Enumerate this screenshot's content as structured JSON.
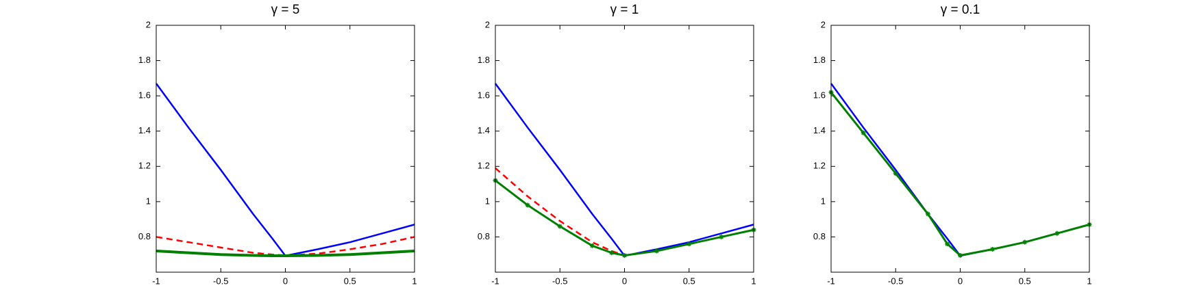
{
  "chart_data": [
    {
      "type": "line",
      "title": "γ = 5",
      "x": [
        -1,
        -0.75,
        -0.5,
        -0.25,
        -0.1,
        0,
        0.25,
        0.5,
        0.75,
        1
      ],
      "series": [
        {
          "color": "#0000ff",
          "linestyle": "solid",
          "linewidth": 2.5,
          "values": [
            1.67,
            1.42,
            1.18,
            0.93,
            0.79,
            0.693,
            0.73,
            0.77,
            0.82,
            0.87
          ]
        },
        {
          "color": "#ff0000",
          "linestyle": "dashed",
          "linewidth": 2.5,
          "values": [
            0.8,
            0.77,
            0.74,
            0.71,
            0.7,
            0.695,
            0.705,
            0.73,
            0.76,
            0.8
          ]
        },
        {
          "color": "#008000",
          "linestyle": "solid",
          "linewidth": 4,
          "values": [
            0.72,
            0.71,
            0.7,
            0.695,
            0.693,
            0.693,
            0.695,
            0.7,
            0.71,
            0.72
          ]
        }
      ],
      "xlim": [
        -1,
        1
      ],
      "xticks": [
        -1,
        -0.5,
        0,
        0.5,
        1
      ],
      "ylim": [
        0.6,
        2
      ],
      "yticks": [
        0.8,
        1,
        1.2,
        1.4,
        1.6,
        1.8,
        2
      ],
      "grid": false
    },
    {
      "type": "line",
      "title": "γ = 1",
      "x": [
        -1,
        -0.75,
        -0.5,
        -0.25,
        -0.1,
        0,
        0.25,
        0.5,
        0.75,
        1
      ],
      "series": [
        {
          "color": "#0000ff",
          "linestyle": "solid",
          "linewidth": 2.5,
          "values": [
            1.67,
            1.42,
            1.18,
            0.93,
            0.79,
            0.693,
            0.73,
            0.77,
            0.82,
            0.87
          ]
        },
        {
          "color": "#ff0000",
          "linestyle": "dashed",
          "linewidth": 2.5,
          "values": [
            1.19,
            1.03,
            0.89,
            0.77,
            0.72,
            0.695,
            0.72,
            0.76,
            0.8,
            0.84
          ]
        },
        {
          "color": "#008000",
          "linestyle": "solid",
          "linewidth": 3,
          "marker": "*",
          "values": [
            1.12,
            0.98,
            0.86,
            0.75,
            0.71,
            0.695,
            0.72,
            0.76,
            0.8,
            0.84
          ]
        }
      ],
      "xlim": [
        -1,
        1
      ],
      "xticks": [
        -1,
        -0.5,
        0,
        0.5,
        1
      ],
      "ylim": [
        0.6,
        2
      ],
      "yticks": [
        0.8,
        1,
        1.2,
        1.4,
        1.6,
        1.8,
        2
      ],
      "grid": false
    },
    {
      "type": "line",
      "title": "γ = 0.1",
      "x": [
        -1,
        -0.75,
        -0.5,
        -0.25,
        -0.1,
        0,
        0.25,
        0.5,
        0.75,
        1
      ],
      "series": [
        {
          "color": "#0000ff",
          "linestyle": "solid",
          "linewidth": 2.5,
          "values": [
            1.67,
            1.42,
            1.18,
            0.93,
            0.79,
            0.693,
            0.73,
            0.77,
            0.82,
            0.87
          ]
        },
        {
          "color": "#ff0000",
          "linestyle": "dashed",
          "linewidth": 2.5,
          "values": [
            1.62,
            1.39,
            1.16,
            0.93,
            0.76,
            0.695,
            0.73,
            0.77,
            0.82,
            0.87
          ]
        },
        {
          "color": "#008000",
          "linestyle": "solid",
          "linewidth": 3,
          "marker": "*",
          "values": [
            1.62,
            1.39,
            1.16,
            0.93,
            0.76,
            0.695,
            0.73,
            0.77,
            0.82,
            0.87
          ]
        }
      ],
      "xlim": [
        -1,
        1
      ],
      "xticks": [
        -1,
        -0.5,
        0,
        0.5,
        1
      ],
      "ylim": [
        0.6,
        2
      ],
      "yticks": [
        0.8,
        1,
        1.2,
        1.4,
        1.6,
        1.8,
        2
      ],
      "grid": false
    }
  ]
}
